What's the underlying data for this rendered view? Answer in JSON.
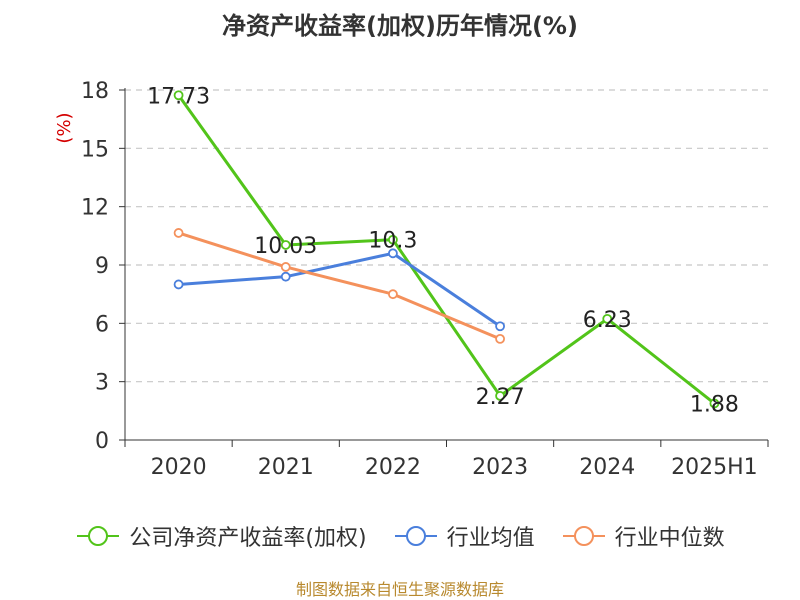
{
  "chart_data": {
    "type": "line",
    "title": "净资产收益率(加权)历年情况(%)",
    "ylabel": "(%)",
    "categories": [
      "2020",
      "2021",
      "2022",
      "2023",
      "2024",
      "2025H1"
    ],
    "ylim": [
      0,
      18
    ],
    "yticks": [
      0,
      3,
      6,
      9,
      12,
      15,
      18
    ],
    "grid": true,
    "legend_position": "bottom",
    "series": [
      {
        "name": "公司净资产收益率(加权)",
        "color": "#52c41a",
        "values": [
          17.73,
          10.03,
          10.3,
          2.27,
          6.23,
          1.88
        ],
        "labels": [
          "17.73",
          "10.03",
          "10.3",
          "2.27",
          "6.23",
          "1.88"
        ]
      },
      {
        "name": "行业均值",
        "color": "#4a7fdc",
        "values": [
          8.0,
          8.4,
          9.6,
          5.85,
          null,
          null
        ]
      },
      {
        "name": "行业中位数",
        "color": "#f4915c",
        "values": [
          10.65,
          8.9,
          7.5,
          5.2,
          null,
          null
        ]
      }
    ]
  },
  "source": "制图数据来自恒生聚源数据库"
}
